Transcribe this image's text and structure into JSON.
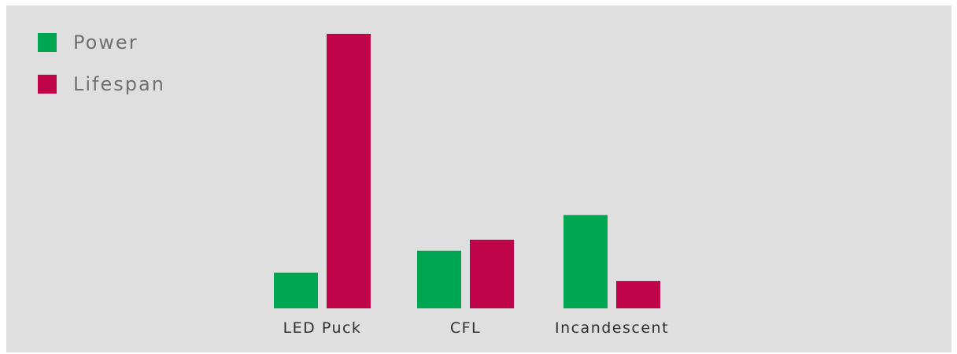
{
  "chart_data": {
    "type": "bar",
    "categories": [
      "LED Puck",
      "CFL",
      "Incandescent"
    ],
    "series": [
      {
        "name": "Power",
        "color": "#00a651",
        "values": [
          13,
          21,
          34
        ]
      },
      {
        "name": "Lifespan",
        "color": "#c0044a",
        "values": [
          100,
          25,
          10
        ]
      }
    ],
    "ylim": [
      0,
      100
    ],
    "grid": false,
    "legend_position": "top-left",
    "background": "#dfdfdf"
  }
}
